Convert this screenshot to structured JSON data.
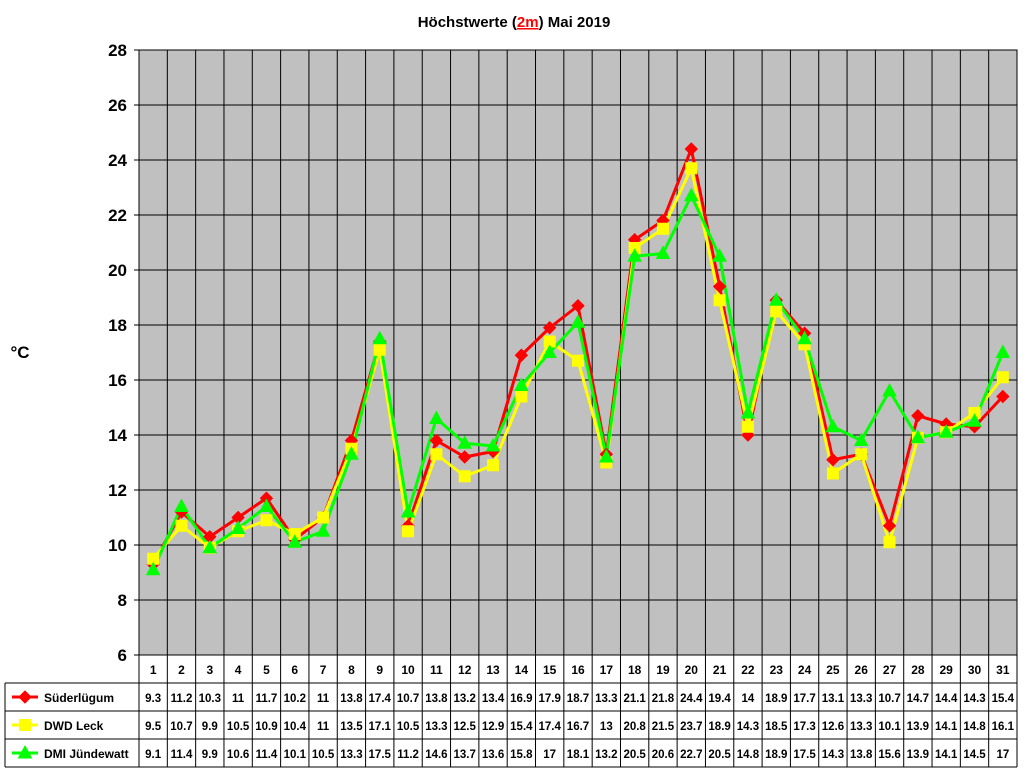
{
  "chart_data": {
    "type": "line",
    "title_prefix": "Höchstwerte (",
    "title_highlight": "2m",
    "title_suffix": ") Mai 2019",
    "ylabel": "°C",
    "ylim": [
      6,
      28
    ],
    "yticks": [
      "6",
      "8",
      "10",
      "12",
      "14",
      "16",
      "18",
      "20",
      "22",
      "24",
      "26",
      "28"
    ],
    "categories": [
      "1",
      "2",
      "3",
      "4",
      "5",
      "6",
      "7",
      "8",
      "9",
      "10",
      "11",
      "12",
      "13",
      "14",
      "15",
      "16",
      "17",
      "18",
      "19",
      "20",
      "21",
      "22",
      "23",
      "24",
      "25",
      "26",
      "27",
      "28",
      "29",
      "30",
      "31"
    ],
    "grid": true,
    "legend_placement": "data-table-left",
    "series": [
      {
        "name": "Süderlügum",
        "color": "#ff0000",
        "marker": "diamond",
        "values": [
          9.3,
          11.2,
          10.3,
          11,
          11.7,
          10.2,
          11,
          13.8,
          17.4,
          10.7,
          13.8,
          13.2,
          13.4,
          16.9,
          17.9,
          18.7,
          13.3,
          21.1,
          21.8,
          24.4,
          19.4,
          14,
          18.9,
          17.7,
          13.1,
          13.3,
          10.7,
          14.7,
          14.4,
          14.3,
          15.4
        ]
      },
      {
        "name": "DWD Leck",
        "color": "#ffff00",
        "marker": "square",
        "values": [
          9.5,
          10.7,
          9.9,
          10.5,
          10.9,
          10.4,
          11,
          13.5,
          17.1,
          10.5,
          13.3,
          12.5,
          12.9,
          15.4,
          17.4,
          16.7,
          13,
          20.8,
          21.5,
          23.7,
          18.9,
          14.3,
          18.5,
          17.3,
          12.6,
          13.3,
          10.1,
          13.9,
          14.1,
          14.8,
          16.1
        ]
      },
      {
        "name": "DMI Jündewatt",
        "color": "#00ff00",
        "marker": "triangle",
        "values": [
          9.1,
          11.4,
          9.9,
          10.6,
          11.4,
          10.1,
          10.5,
          13.3,
          17.5,
          11.2,
          14.6,
          13.7,
          13.6,
          15.8,
          17,
          18.1,
          13.2,
          20.5,
          20.6,
          22.7,
          20.5,
          14.8,
          18.9,
          17.5,
          14.3,
          13.8,
          15.6,
          13.9,
          14.1,
          14.5,
          17
        ]
      }
    ],
    "colors": {
      "plot_background": "#c0c0c0",
      "title_highlight": "#ff0000"
    }
  }
}
